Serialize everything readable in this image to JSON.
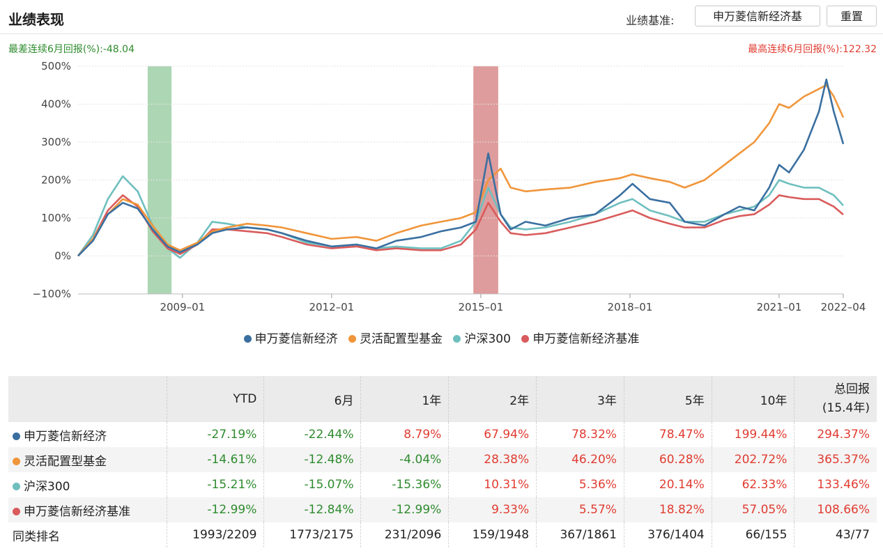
{
  "header": {
    "title": "业绩表现",
    "benchmark_label": "业绩基准:",
    "benchmark_value": "申万菱信新经济基",
    "reset_label": "重置"
  },
  "worst_6m_text": "最差连续6月回报(%):-48.04",
  "best_6m_text": "最高连续6月回报(%):122.32",
  "colors": {
    "fund": "#3a6fa0",
    "category": "#f0953a",
    "hs300": "#6fbfbf",
    "benchmark": "#d95b5b",
    "worst_band": "#9fcfa7",
    "best_band": "#d98b8b",
    "negative": "#2e8b2e",
    "positive": "#e03c31"
  },
  "chart_data": {
    "type": "line",
    "y_unit": "%",
    "ylim": [
      -100,
      500
    ],
    "y_ticks": [
      "500%",
      "400%",
      "300%",
      "200%",
      "100%",
      "0%",
      "−100%"
    ],
    "y_tick_values": [
      500,
      400,
      300,
      200,
      100,
      0,
      -100
    ],
    "x_ticks": [
      "2009–01",
      "2012–01",
      "2015–01",
      "2018–01",
      "2021–01",
      "2022–04"
    ],
    "x_tick_values": [
      2009.0,
      2012.0,
      2015.0,
      2018.0,
      2021.0,
      2022.29
    ],
    "xlim": [
      2006.9,
      2022.29
    ],
    "grid": true,
    "legend_position": "bottom",
    "highlight_bands": [
      {
        "label": "最差连续6月回报",
        "x_start": 2008.3,
        "x_end": 2008.78
      },
      {
        "label": "最高连续6月回报",
        "x_start": 2014.85,
        "x_end": 2015.35
      }
    ],
    "series": [
      {
        "name": "申万菱信新经济",
        "x": [
          2006.9,
          2007.2,
          2007.5,
          2007.8,
          2008.1,
          2008.4,
          2008.7,
          2008.95,
          2009.3,
          2009.6,
          2009.9,
          2010.3,
          2010.7,
          2011.0,
          2011.5,
          2012.0,
          2012.5,
          2012.9,
          2013.3,
          2013.8,
          2014.2,
          2014.6,
          2014.9,
          2015.15,
          2015.4,
          2015.6,
          2015.9,
          2016.3,
          2016.8,
          2017.3,
          2017.8,
          2018.05,
          2018.4,
          2018.8,
          2019.1,
          2019.5,
          2019.9,
          2020.2,
          2020.5,
          2020.8,
          2021.0,
          2021.2,
          2021.5,
          2021.8,
          2021.95,
          2022.1,
          2022.29
        ],
        "values": [
          0,
          40,
          110,
          140,
          125,
          70,
          25,
          10,
          30,
          60,
          70,
          75,
          70,
          60,
          40,
          25,
          30,
          20,
          40,
          50,
          65,
          75,
          90,
          270,
          110,
          70,
          90,
          80,
          100,
          110,
          160,
          190,
          150,
          140,
          90,
          80,
          110,
          130,
          120,
          180,
          240,
          220,
          280,
          380,
          465,
          380,
          295
        ]
      },
      {
        "name": "灵活配置型基金",
        "x": [
          2006.9,
          2007.2,
          2007.5,
          2007.8,
          2008.1,
          2008.4,
          2008.7,
          2008.95,
          2009.3,
          2009.6,
          2009.9,
          2010.3,
          2010.7,
          2011.0,
          2011.5,
          2012.0,
          2012.5,
          2012.9,
          2013.3,
          2013.8,
          2014.2,
          2014.6,
          2014.9,
          2015.15,
          2015.4,
          2015.6,
          2015.9,
          2016.3,
          2016.8,
          2017.3,
          2017.8,
          2018.05,
          2018.4,
          2018.8,
          2019.1,
          2019.5,
          2019.9,
          2020.2,
          2020.5,
          2020.8,
          2021.0,
          2021.2,
          2021.5,
          2021.8,
          2021.95,
          2022.1,
          2022.29
        ],
        "values": [
          0,
          45,
          110,
          150,
          135,
          80,
          30,
          15,
          35,
          65,
          75,
          85,
          80,
          75,
          60,
          45,
          50,
          40,
          60,
          80,
          90,
          100,
          115,
          200,
          230,
          180,
          170,
          175,
          180,
          195,
          205,
          215,
          205,
          195,
          180,
          200,
          240,
          270,
          300,
          350,
          400,
          390,
          420,
          440,
          450,
          420,
          365
        ]
      },
      {
        "name": "沪深300",
        "x": [
          2006.9,
          2007.2,
          2007.5,
          2007.8,
          2008.1,
          2008.4,
          2008.7,
          2008.95,
          2009.3,
          2009.6,
          2009.9,
          2010.3,
          2010.7,
          2011.0,
          2011.5,
          2012.0,
          2012.5,
          2012.9,
          2013.3,
          2013.8,
          2014.2,
          2014.6,
          2014.9,
          2015.15,
          2015.4,
          2015.6,
          2015.9,
          2016.3,
          2016.8,
          2017.3,
          2017.8,
          2018.05,
          2018.4,
          2018.8,
          2019.1,
          2019.5,
          2019.9,
          2020.2,
          2020.5,
          2020.8,
          2021.0,
          2021.2,
          2021.5,
          2021.8,
          2021.95,
          2022.1,
          2022.29
        ],
        "values": [
          0,
          55,
          150,
          210,
          170,
          80,
          20,
          -5,
          35,
          90,
          85,
          75,
          70,
          60,
          35,
          25,
          30,
          20,
          25,
          20,
          20,
          40,
          90,
          180,
          110,
          75,
          70,
          75,
          90,
          110,
          140,
          150,
          120,
          105,
          90,
          90,
          110,
          120,
          130,
          160,
          200,
          190,
          180,
          180,
          170,
          160,
          133
        ]
      },
      {
        "name": "申万菱信新经济基准",
        "x": [
          2006.9,
          2007.2,
          2007.5,
          2007.8,
          2008.1,
          2008.4,
          2008.7,
          2008.95,
          2009.3,
          2009.6,
          2009.9,
          2010.3,
          2010.7,
          2011.0,
          2011.5,
          2012.0,
          2012.5,
          2012.9,
          2013.3,
          2013.8,
          2014.2,
          2014.6,
          2014.9,
          2015.15,
          2015.4,
          2015.6,
          2015.9,
          2016.3,
          2016.8,
          2017.3,
          2017.8,
          2018.05,
          2018.4,
          2018.8,
          2019.1,
          2019.5,
          2019.9,
          2020.2,
          2020.5,
          2020.8,
          2021.0,
          2021.2,
          2021.5,
          2021.8,
          2021.95,
          2022.1,
          2022.29
        ],
        "values": [
          0,
          45,
          120,
          160,
          130,
          65,
          20,
          5,
          30,
          70,
          70,
          65,
          60,
          50,
          30,
          20,
          25,
          15,
          20,
          15,
          15,
          30,
          70,
          140,
          90,
          60,
          55,
          60,
          75,
          90,
          110,
          120,
          100,
          85,
          75,
          75,
          95,
          105,
          110,
          135,
          160,
          155,
          150,
          150,
          140,
          130,
          109
        ]
      }
    ]
  },
  "table": {
    "headers": [
      "",
      "YTD",
      "6月",
      "1年",
      "2年",
      "3年",
      "5年",
      "10年",
      "总回报",
      "(15.4年)"
    ],
    "rows": [
      {
        "name": "申万菱信新经济",
        "values": [
          "-27.19%",
          "-22.44%",
          "8.79%",
          "67.94%",
          "78.32%",
          "78.47%",
          "199.44%",
          "294.37%"
        ]
      },
      {
        "name": "灵活配置型基金",
        "values": [
          "-14.61%",
          "-12.48%",
          "-4.04%",
          "28.38%",
          "46.20%",
          "60.28%",
          "202.72%",
          "365.37%"
        ]
      },
      {
        "name": "沪深300",
        "values": [
          "-15.21%",
          "-15.07%",
          "-15.36%",
          "10.31%",
          "5.36%",
          "20.14%",
          "62.33%",
          "133.46%"
        ]
      },
      {
        "name": "申万菱信新经济基准",
        "values": [
          "-12.99%",
          "-12.84%",
          "-12.99%",
          "9.33%",
          "5.57%",
          "18.82%",
          "57.05%",
          "108.66%"
        ]
      }
    ],
    "rank_row": {
      "name": "同类排名",
      "values": [
        "1993/2209",
        "1773/2175",
        "231/2096",
        "159/1948",
        "367/1861",
        "376/1404",
        "66/155",
        "43/77"
      ]
    }
  }
}
